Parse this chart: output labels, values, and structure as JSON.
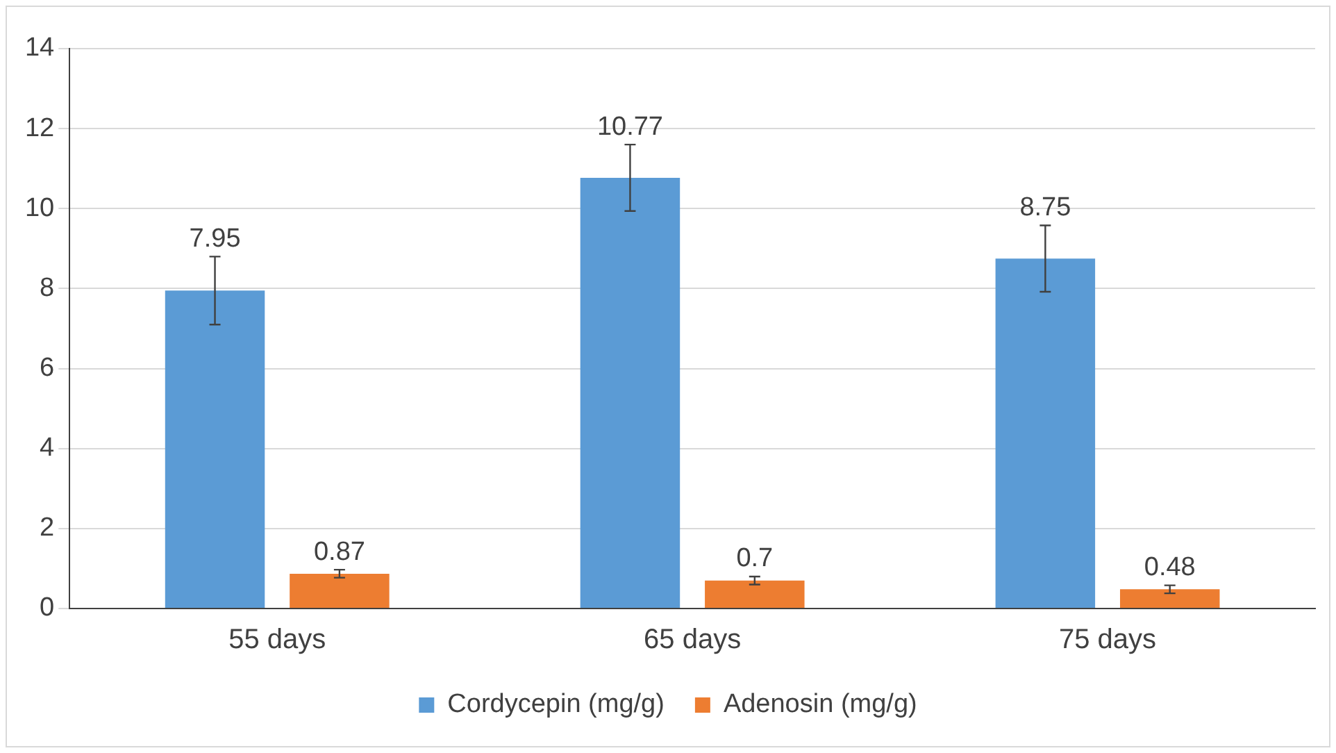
{
  "chart_data": {
    "type": "bar",
    "categories": [
      "55 days",
      "65 days",
      "75 days"
    ],
    "series": [
      {
        "name": "Cordycepin (mg/g)",
        "color": "#5b9bd5",
        "values": [
          7.95,
          10.77,
          8.75
        ],
        "errors": [
          0.85,
          0.83,
          0.83
        ]
      },
      {
        "name": "Adenosin (mg/g)",
        "color": "#ed7d31",
        "values": [
          0.87,
          0.7,
          0.48
        ],
        "errors": [
          0.1,
          0.1,
          0.1
        ]
      }
    ],
    "ylim": [
      0,
      14
    ],
    "yticks": [
      0,
      2,
      4,
      6,
      8,
      10,
      12,
      14
    ],
    "grid": "y",
    "legend": "bottom",
    "data_labels": true
  }
}
